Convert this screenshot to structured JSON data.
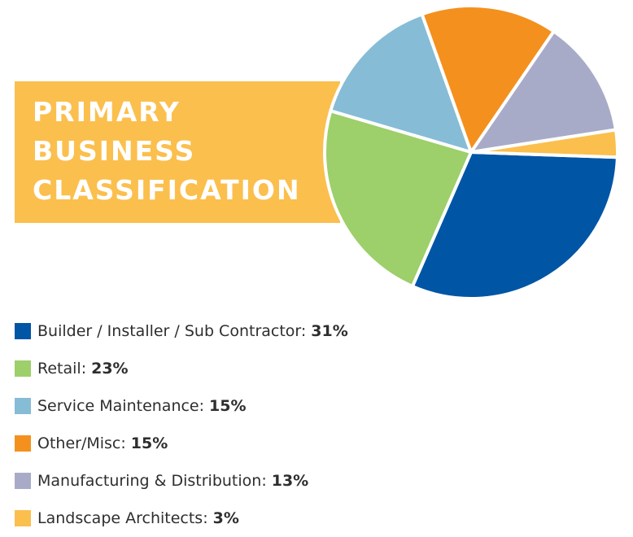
{
  "title": "PRIMARY\nBUSINESS\nCLASSIFICATION",
  "chart_data": {
    "type": "pie",
    "title": "PRIMARY BUSINESS CLASSIFICATION",
    "legend_position": "bottom-left",
    "slices": [
      {
        "label": "Builder / Installer / Sub Contractor:",
        "value_text": "31%",
        "value": 31,
        "color": "#0055a5"
      },
      {
        "label": "Retail:",
        "value_text": "23%",
        "value": 23,
        "color": "#9dcf6a"
      },
      {
        "label": "Service Maintenance:",
        "value_text": "15%",
        "value": 15,
        "color": "#86bcd6"
      },
      {
        "label": "Other/Misc:",
        "value_text": "15%",
        "value": 15,
        "color": "#f4901e"
      },
      {
        "label": "Manufacturing & Distribution:",
        "value_text": "13%",
        "value": 13,
        "color": "#a8abc8"
      },
      {
        "label": "Landscape Architects:",
        "value_text": "3%",
        "value": 3,
        "color": "#fbbf4e"
      }
    ]
  }
}
